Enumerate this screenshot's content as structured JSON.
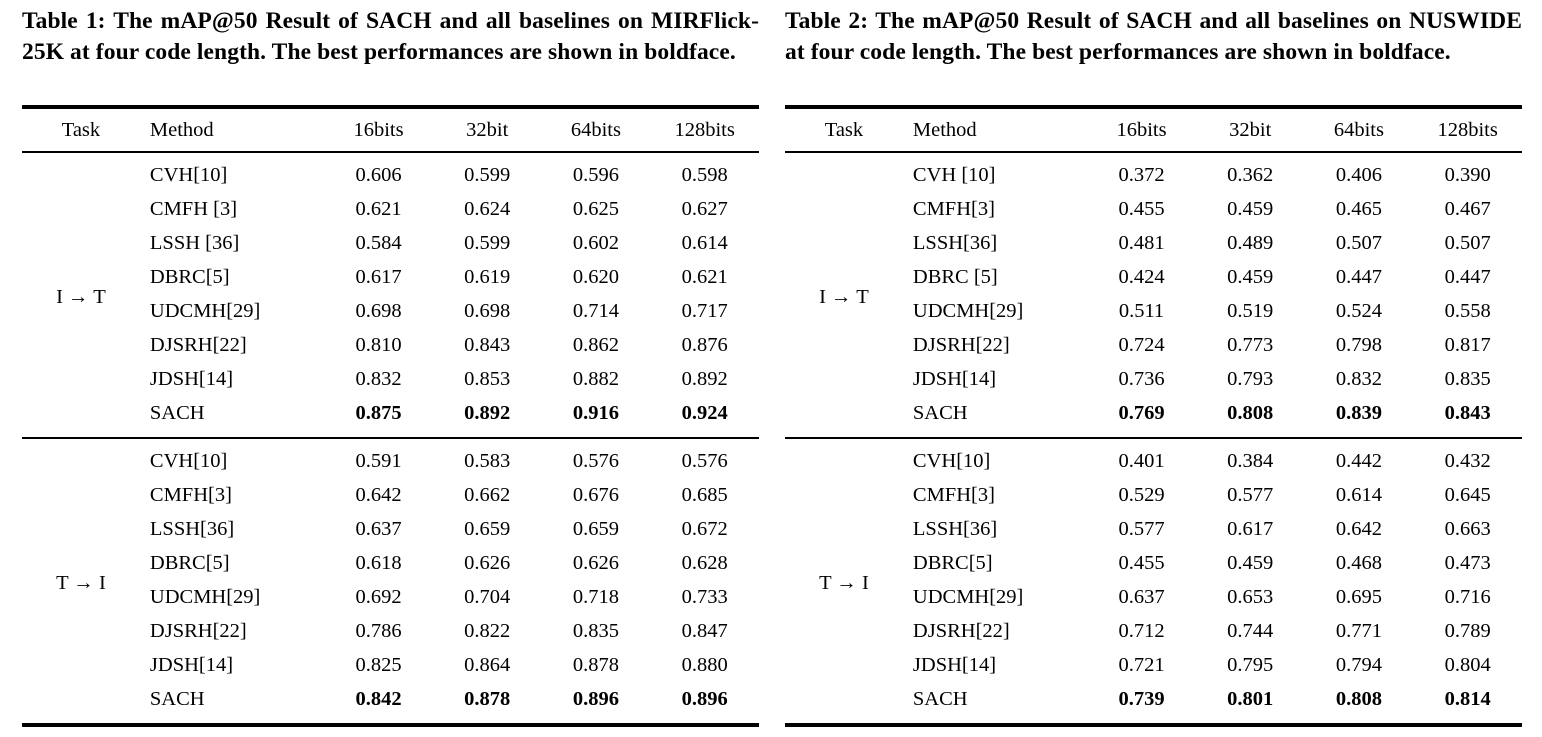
{
  "page": {
    "background": "#ffffff",
    "text_color": "#000000"
  },
  "tables": [
    {
      "caption": "Table 1: The mAP@50 Result of SACH and all baselines on MIRFlick-25K at four code length. The best performances are shown in boldface.",
      "columns": [
        "Task",
        "Method",
        "16bits",
        "32bit",
        "64bits",
        "128bits"
      ],
      "sections": [
        {
          "task": "I → T",
          "rows": [
            {
              "method": "CVH[10]",
              "values": [
                "0.606",
                "0.599",
                "0.596",
                "0.598"
              ],
              "bold": false
            },
            {
              "method": "CMFH [3]",
              "values": [
                "0.621",
                "0.624",
                "0.625",
                "0.627"
              ],
              "bold": false
            },
            {
              "method": "LSSH [36]",
              "values": [
                "0.584",
                "0.599",
                "0.602",
                "0.614"
              ],
              "bold": false
            },
            {
              "method": "DBRC[5]",
              "values": [
                "0.617",
                "0.619",
                "0.620",
                "0.621"
              ],
              "bold": false
            },
            {
              "method": "UDCMH[29]",
              "values": [
                "0.698",
                "0.698",
                "0.714",
                "0.717"
              ],
              "bold": false
            },
            {
              "method": "DJSRH[22]",
              "values": [
                "0.810",
                "0.843",
                "0.862",
                "0.876"
              ],
              "bold": false
            },
            {
              "method": "JDSH[14]",
              "values": [
                "0.832",
                "0.853",
                "0.882",
                "0.892"
              ],
              "bold": false
            },
            {
              "method": "SACH",
              "values": [
                "0.875",
                "0.892",
                "0.916",
                "0.924"
              ],
              "bold": true
            }
          ]
        },
        {
          "task": "T → I",
          "rows": [
            {
              "method": "CVH[10]",
              "values": [
                "0.591",
                "0.583",
                "0.576",
                "0.576"
              ],
              "bold": false
            },
            {
              "method": "CMFH[3]",
              "values": [
                "0.642",
                "0.662",
                "0.676",
                "0.685"
              ],
              "bold": false
            },
            {
              "method": "LSSH[36]",
              "values": [
                "0.637",
                "0.659",
                "0.659",
                "0.672"
              ],
              "bold": false
            },
            {
              "method": "DBRC[5]",
              "values": [
                "0.618",
                "0.626",
                "0.626",
                "0.628"
              ],
              "bold": false
            },
            {
              "method": "UDCMH[29]",
              "values": [
                "0.692",
                "0.704",
                "0.718",
                "0.733"
              ],
              "bold": false
            },
            {
              "method": "DJSRH[22]",
              "values": [
                "0.786",
                "0.822",
                "0.835",
                "0.847"
              ],
              "bold": false
            },
            {
              "method": "JDSH[14]",
              "values": [
                "0.825",
                "0.864",
                "0.878",
                "0.880"
              ],
              "bold": false
            },
            {
              "method": "SACH",
              "values": [
                "0.842",
                "0.878",
                "0.896",
                "0.896"
              ],
              "bold": true
            }
          ]
        }
      ]
    },
    {
      "caption": "Table 2: The mAP@50 Result of SACH and all baselines on NUSWIDE at four code length. The best performances are shown in boldface.",
      "columns": [
        "Task",
        "Method",
        "16bits",
        "32bit",
        "64bits",
        "128bits"
      ],
      "sections": [
        {
          "task": "I → T",
          "rows": [
            {
              "method": "CVH [10]",
              "values": [
                "0.372",
                "0.362",
                "0.406",
                "0.390"
              ],
              "bold": false
            },
            {
              "method": "CMFH[3]",
              "values": [
                "0.455",
                "0.459",
                "0.465",
                "0.467"
              ],
              "bold": false
            },
            {
              "method": "LSSH[36]",
              "values": [
                "0.481",
                "0.489",
                "0.507",
                "0.507"
              ],
              "bold": false
            },
            {
              "method": "DBRC [5]",
              "values": [
                "0.424",
                "0.459",
                "0.447",
                "0.447"
              ],
              "bold": false
            },
            {
              "method": "UDCMH[29]",
              "values": [
                "0.511",
                "0.519",
                "0.524",
                "0.558"
              ],
              "bold": false
            },
            {
              "method": "DJSRH[22]",
              "values": [
                "0.724",
                "0.773",
                "0.798",
                "0.817"
              ],
              "bold": false
            },
            {
              "method": "JDSH[14]",
              "values": [
                "0.736",
                "0.793",
                "0.832",
                "0.835"
              ],
              "bold": false
            },
            {
              "method": "SACH",
              "values": [
                "0.769",
                "0.808",
                "0.839",
                "0.843"
              ],
              "bold": true
            }
          ]
        },
        {
          "task": "T → I",
          "rows": [
            {
              "method": "CVH[10]",
              "values": [
                "0.401",
                "0.384",
                "0.442",
                "0.432"
              ],
              "bold": false
            },
            {
              "method": "CMFH[3]",
              "values": [
                "0.529",
                "0.577",
                "0.614",
                "0.645"
              ],
              "bold": false
            },
            {
              "method": "LSSH[36]",
              "values": [
                "0.577",
                "0.617",
                "0.642",
                "0.663"
              ],
              "bold": false
            },
            {
              "method": "DBRC[5]",
              "values": [
                "0.455",
                "0.459",
                "0.468",
                "0.473"
              ],
              "bold": false
            },
            {
              "method": "UDCMH[29]",
              "values": [
                "0.637",
                "0.653",
                "0.695",
                "0.716"
              ],
              "bold": false
            },
            {
              "method": "DJSRH[22]",
              "values": [
                "0.712",
                "0.744",
                "0.771",
                "0.789"
              ],
              "bold": false
            },
            {
              "method": "JDSH[14]",
              "values": [
                "0.721",
                "0.795",
                "0.794",
                "0.804"
              ],
              "bold": false
            },
            {
              "method": "SACH",
              "values": [
                "0.739",
                "0.801",
                "0.808",
                "0.814"
              ],
              "bold": true
            }
          ]
        }
      ]
    }
  ]
}
